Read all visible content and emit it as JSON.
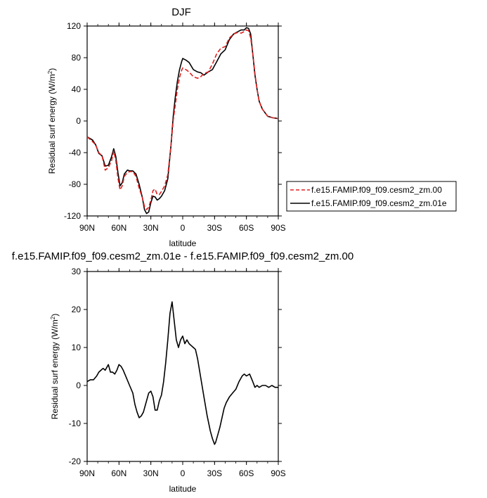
{
  "colors": {
    "series_a": "#e02020",
    "series_b": "#000000",
    "axis": "#000000",
    "background": "#ffffff"
  },
  "chart_data": [
    {
      "type": "line",
      "title": "DJF",
      "xlabel": "latitude",
      "ylabel": "Residual surf energy (W/m²)",
      "xlim": [
        90,
        -90
      ],
      "ylim": [
        -120,
        120
      ],
      "xticks": [
        {
          "v": 90,
          "label": "90N"
        },
        {
          "v": 60,
          "label": "60N"
        },
        {
          "v": 30,
          "label": "30N"
        },
        {
          "v": 0,
          "label": "0"
        },
        {
          "v": -30,
          "label": "30S"
        },
        {
          "v": -60,
          "label": "60S"
        },
        {
          "v": -90,
          "label": "90S"
        }
      ],
      "yticks": [
        {
          "v": 120,
          "label": "120"
        },
        {
          "v": 80,
          "label": "80"
        },
        {
          "v": 40,
          "label": "40"
        },
        {
          "v": 0,
          "label": "0"
        },
        {
          "v": -40,
          "label": "-40"
        },
        {
          "v": -80,
          "label": "-80"
        },
        {
          "v": -120,
          "label": "-120"
        }
      ],
      "legend": {
        "position": "right",
        "entries": [
          {
            "name": "f.e15.FAMIP.f09_f09.cesm2_zm.00",
            "style": "dashed",
            "color": "#e02020"
          },
          {
            "name": "f.e15.FAMIP.f09_f09.cesm2_zm.01e",
            "style": "solid",
            "color": "#000000"
          }
        ]
      },
      "series": [
        {
          "name": "f.e15.FAMIP.f09_f09.cesm2_zm.00",
          "x": [
            90,
            85,
            82,
            79,
            76,
            73,
            70,
            67,
            65,
            63,
            61,
            59,
            57,
            55,
            52,
            50,
            47,
            44,
            41,
            38,
            36,
            34,
            32,
            30,
            28,
            26,
            24,
            22,
            20,
            17,
            14,
            11,
            9,
            7,
            5,
            3,
            1,
            0,
            -3,
            -6,
            -10,
            -14,
            -17,
            -20,
            -24,
            -28,
            -32,
            -36,
            -40,
            -44,
            -48,
            -52,
            -55,
            -58,
            -60,
            -62,
            -64,
            -66,
            -68,
            -70,
            -72,
            -75,
            -80,
            -85,
            -90
          ],
          "y": [
            -20,
            -26,
            -30,
            -40,
            -44,
            -62,
            -59,
            -50,
            -38,
            -50,
            -72,
            -87,
            -82,
            -70,
            -65,
            -64,
            -64,
            -70,
            -85,
            -97,
            -108,
            -112,
            -109,
            -100,
            -88,
            -86,
            -93,
            -93,
            -89,
            -82,
            -68,
            -30,
            0,
            20,
            40,
            55,
            64,
            67,
            65,
            62,
            56,
            54,
            56,
            60,
            62,
            72,
            85,
            92,
            94,
            105,
            110,
            112,
            111,
            113,
            115,
            114,
            105,
            85,
            60,
            40,
            25,
            15,
            6,
            4,
            3
          ]
        },
        {
          "name": "f.e15.FAMIP.f09_f09.cesm2_zm.01e",
          "x": [
            90,
            85,
            82,
            79,
            76,
            73,
            70,
            67,
            65,
            63,
            61,
            59,
            57,
            55,
            52,
            50,
            47,
            44,
            41,
            38,
            36,
            34,
            32,
            30,
            28,
            26,
            24,
            22,
            20,
            17,
            14,
            11,
            9,
            7,
            5,
            3,
            1,
            0,
            -3,
            -6,
            -10,
            -14,
            -17,
            -20,
            -24,
            -28,
            -32,
            -36,
            -40,
            -44,
            -48,
            -52,
            -55,
            -58,
            -60,
            -62,
            -64,
            -66,
            -68,
            -70,
            -72,
            -75,
            -80,
            -85,
            -90
          ],
          "y": [
            -20,
            -24,
            -30,
            -41,
            -44,
            -57,
            -56,
            -45,
            -35,
            -45,
            -65,
            -82,
            -78,
            -67,
            -62,
            -63,
            -63,
            -67,
            -80,
            -97,
            -112,
            -117,
            -115,
            -103,
            -95,
            -96,
            -100,
            -98,
            -95,
            -88,
            -73,
            -30,
            5,
            30,
            50,
            65,
            75,
            79,
            77,
            74,
            65,
            62,
            61,
            58,
            62,
            65,
            75,
            85,
            90,
            103,
            110,
            113,
            115,
            115,
            118,
            117,
            110,
            85,
            58,
            40,
            25,
            15,
            6,
            4,
            3
          ]
        }
      ]
    },
    {
      "type": "line",
      "title": "f.e15.FAMIP.f09_f09.cesm2_zm.01e - f.e15.FAMIP.f09_f09.cesm2_zm.00",
      "xlabel": "latitude",
      "ylabel": "Residual surf energy (W/m²)",
      "xlim": [
        90,
        -90
      ],
      "ylim": [
        -20,
        30
      ],
      "xticks": [
        {
          "v": 90,
          "label": "90N"
        },
        {
          "v": 60,
          "label": "60N"
        },
        {
          "v": 30,
          "label": "30N"
        },
        {
          "v": 0,
          "label": "0"
        },
        {
          "v": -30,
          "label": "30S"
        },
        {
          "v": -60,
          "label": "60S"
        },
        {
          "v": -90,
          "label": "90S"
        }
      ],
      "yticks": [
        {
          "v": 30,
          "label": "30"
        },
        {
          "v": 20,
          "label": "20"
        },
        {
          "v": 10,
          "label": "10"
        },
        {
          "v": 0,
          "label": "0"
        },
        {
          "v": -10,
          "label": "-10"
        },
        {
          "v": -20,
          "label": "-20"
        }
      ],
      "series": [
        {
          "name": "difference",
          "x": [
            90,
            87,
            84,
            81,
            79,
            77,
            75,
            73,
            70,
            68,
            66,
            64,
            62,
            60,
            58,
            56,
            53,
            50,
            47,
            45,
            43,
            41,
            39,
            37,
            35,
            32,
            30,
            28,
            26,
            24,
            22,
            20,
            18,
            16,
            14,
            12,
            10,
            8,
            6,
            4,
            2,
            0,
            -2,
            -4,
            -6,
            -8,
            -10,
            -12,
            -14,
            -17,
            -20,
            -23,
            -26,
            -28,
            -30,
            -31,
            -33,
            -35,
            -37,
            -39,
            -41,
            -44,
            -47,
            -50,
            -53,
            -56,
            -58,
            -60,
            -63,
            -66,
            -68,
            -70,
            -72,
            -75,
            -78,
            -81,
            -84,
            -87,
            -90
          ],
          "y": [
            1,
            1.5,
            1.5,
            2.5,
            3.5,
            4,
            4.5,
            4,
            5.5,
            3.5,
            3.5,
            3,
            4,
            5.5,
            5,
            4,
            2,
            0,
            -2,
            -5,
            -7,
            -8.5,
            -8,
            -7,
            -5,
            -2,
            -1.5,
            -3,
            -6.5,
            -6.5,
            -4,
            -2.5,
            1,
            6,
            12,
            19,
            22,
            17,
            12,
            10,
            12,
            13,
            11,
            12,
            11,
            10.5,
            10,
            9.5,
            7,
            2,
            -3,
            -8,
            -12,
            -14,
            -15.5,
            -15,
            -13,
            -11,
            -8.5,
            -6,
            -4.5,
            -3,
            -2,
            -1,
            1,
            2.5,
            3,
            2.5,
            3,
            1,
            -0.5,
            0,
            -0.5,
            0,
            0,
            -0.5,
            0,
            -0.5,
            -0.5
          ]
        }
      ]
    }
  ]
}
